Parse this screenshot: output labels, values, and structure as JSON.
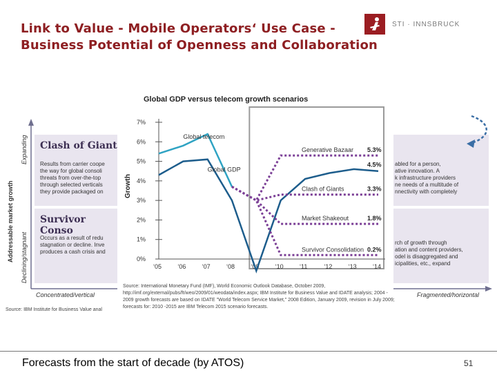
{
  "slide": {
    "title_line1": "Link to Value - Mobile Operators‘ Use Case -",
    "title_line2": "Business Potential of Openness and Collaboration",
    "logo_text": "STI · INNSBRUCK",
    "footer_text": "Forecasts from the start of decade (by ATOS)",
    "page_number": "51"
  },
  "matrix": {
    "y_axis_title": "Addressable market growth",
    "y_top_label": "Expanding",
    "y_bottom_label": "Declining/stagnant",
    "x_left_label": "Concentrated/vertical",
    "x_right_label": "Fragmented/horizontal",
    "cells": [
      {
        "title": "Clash of Giant",
        "text": "Results from carrier coope\nthe way for global consoli\nthreats from over-the-top\nthrough selected verticals\nthey provide packaged on"
      },
      {
        "title": "Survivor Conso",
        "text": "Occurs as a result of redu\nstagnation or decline. Inve\nproduces a cash crisis and"
      }
    ],
    "right_texts": [
      "abled for a person,\native innovation. A\nk infrastructure providers\nne needs of a multitude of\nnnectivity with completely",
      "rch of growth through\nation and content providers,\nodel is disaggregated and\nicipalities, etc., expand"
    ],
    "source_left": "Source: IBM Institute for Business Value anal"
  },
  "chart_data": {
    "type": "line",
    "title": "Global GDP versus telecom growth scenarios",
    "ylabel": "Growth",
    "ylim": [
      0,
      7
    ],
    "yticks": [
      "0%",
      "1%",
      "2%",
      "3%",
      "4%",
      "5%",
      "6%",
      "7%"
    ],
    "categories": [
      "‘05",
      "‘06",
      "‘07",
      "‘08",
      "‘09",
      "‘10",
      "‘11",
      "‘12",
      "‘13",
      "‘14"
    ],
    "series": [
      {
        "name": "Global telecom",
        "color": "#2fa3c3",
        "values": [
          5.4,
          5.8,
          6.4,
          3.7,
          null,
          null,
          null,
          null,
          null,
          null
        ]
      },
      {
        "name": "Global GDP",
        "color": "#1d5d8c",
        "values": [
          4.3,
          5.0,
          5.1,
          3.0,
          -0.6,
          3.0,
          4.1,
          4.4,
          4.6,
          4.5
        ]
      },
      {
        "name": "Generative Bazaar",
        "label": "5.3%",
        "color": "#7b3f96",
        "values": [
          null,
          null,
          null,
          3.7,
          3.0,
          5.3,
          5.3,
          5.3,
          5.3,
          5.3
        ]
      },
      {
        "name": "Clash of Giants",
        "label": "3.3%",
        "color": "#7b3f96",
        "values": [
          null,
          null,
          null,
          3.7,
          3.0,
          3.3,
          3.3,
          3.3,
          3.3,
          3.3
        ]
      },
      {
        "name": "Market Shakeout",
        "label": "1.8%",
        "color": "#7b3f96",
        "values": [
          null,
          null,
          null,
          3.7,
          3.0,
          1.8,
          1.8,
          1.8,
          1.8,
          1.8
        ]
      },
      {
        "name": "Survivor Consolidation",
        "label": "0.2%",
        "color": "#7b3f96",
        "values": [
          null,
          null,
          null,
          3.7,
          3.0,
          0.2,
          0.2,
          0.2,
          0.2,
          0.2
        ]
      }
    ],
    "annotations": [
      {
        "text": "4.5%"
      }
    ],
    "highlight_range": [
      "‘09",
      "‘14"
    ],
    "source": "Source: International Monetary Fund (IMF), World Economic Outlook Database, October 2009, http://imf.org/external/pubs/ft/weo/2009/01/weodata/index.aspx; IBM Institute for Business Value and IDATE analysis; 2004 - 2009 growth forecasts are based on IDATE \"World Telecom Service Market,\" 2008 Edition, January 2009, revision in July 2009; forecasts for: 2010 -2015 are IBM Telecom 2015 scenario forecasts."
  }
}
